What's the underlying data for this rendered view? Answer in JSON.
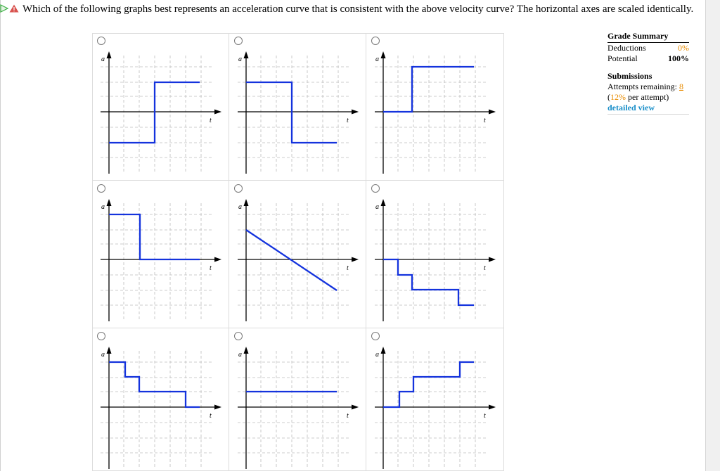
{
  "question": {
    "text": "Which of the following graphs best represents an acceleration curve that is consistent with the above velocity curve? The horizontal axes are scaled identically.",
    "colors": {
      "play_icon": "#3cb043",
      "warning_icon": "#d9534f"
    }
  },
  "graph": {
    "y_label": "a",
    "x_label": "t",
    "curve_color": "#1433dd"
  },
  "options": [
    {
      "curve": "step from low to high (negative then positive)"
    },
    {
      "curve": "step from high to low (positive then negative)"
    },
    {
      "curve": "step from zero to high positive"
    },
    {
      "curve": "step from positive to zero"
    },
    {
      "curve": "linear decreasing line"
    },
    {
      "curve": "descending staircase into negative values"
    },
    {
      "curve": "descending staircase from positive to slightly negative"
    },
    {
      "curve": "constant positive"
    },
    {
      "curve": "ascending staircase"
    }
  ],
  "grade_summary": {
    "title": "Grade Summary",
    "deductions_label": "Deductions",
    "deductions_value": "0%",
    "potential_label": "Potential",
    "potential_value": "100%"
  },
  "submissions": {
    "title": "Submissions",
    "attempts_label": "Attempts remaining:",
    "attempts_value": "8",
    "open_paren": "(",
    "per_attempt_value": "12%",
    "per_attempt_suffix": "per attempt)",
    "detailed_view": "detailed view"
  }
}
